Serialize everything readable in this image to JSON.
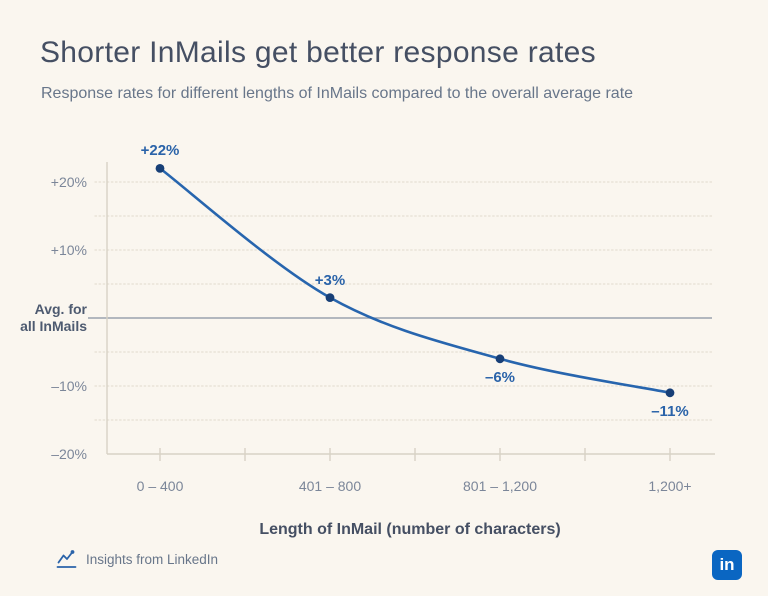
{
  "header": {
    "title": "Shorter InMails get better response rates",
    "subtitle": "Response rates for different lengths of InMails compared to the overall average rate"
  },
  "chart_data": {
    "type": "line",
    "title": "Shorter InMails get better response rates",
    "subtitle": "Response rates for different lengths of InMails compared to the overall average rate",
    "categories": [
      "0 – 400",
      "401 – 800",
      "801 – 1,200",
      "1,200+"
    ],
    "values": [
      22,
      3,
      -6,
      -11
    ],
    "point_labels": [
      "+22%",
      "+3%",
      "–6%",
      "–11%"
    ],
    "xlabel": "Length of InMail (number of characters)",
    "ylabel": "",
    "ylim": [
      -20,
      20
    ],
    "gridline_step_pct": 5,
    "grid": true,
    "legend": "none",
    "y_ticks": [
      {
        "value": 20,
        "label": "+20%"
      },
      {
        "value": 10,
        "label": "+10%"
      },
      {
        "value": 0,
        "label": "Avg. for all InMails",
        "baseline": true
      },
      {
        "value": -10,
        "label": "–10%"
      },
      {
        "value": -20,
        "label": "–20%"
      }
    ],
    "baseline_label_lines": [
      "Avg. for",
      "all InMails"
    ],
    "series_color": "#2765ae",
    "point_color": "#173f77"
  },
  "footer": {
    "insights_label": "Insights from LinkedIn",
    "insights_icon": "line-chart-icon",
    "linkedin_logo_text": "in"
  },
  "colors": {
    "background": "#faf6ef",
    "title": "#454f63",
    "subtitle": "#68768a",
    "tick_label": "#7b8699",
    "baseline_label": "#4d5a70",
    "gridline": "#e5dfd3",
    "zero_line": "#9aa2ae",
    "axis_line": "#d8d2c5",
    "data_label": "#2a63a9",
    "linkedin_blue": "#0a66c2"
  }
}
